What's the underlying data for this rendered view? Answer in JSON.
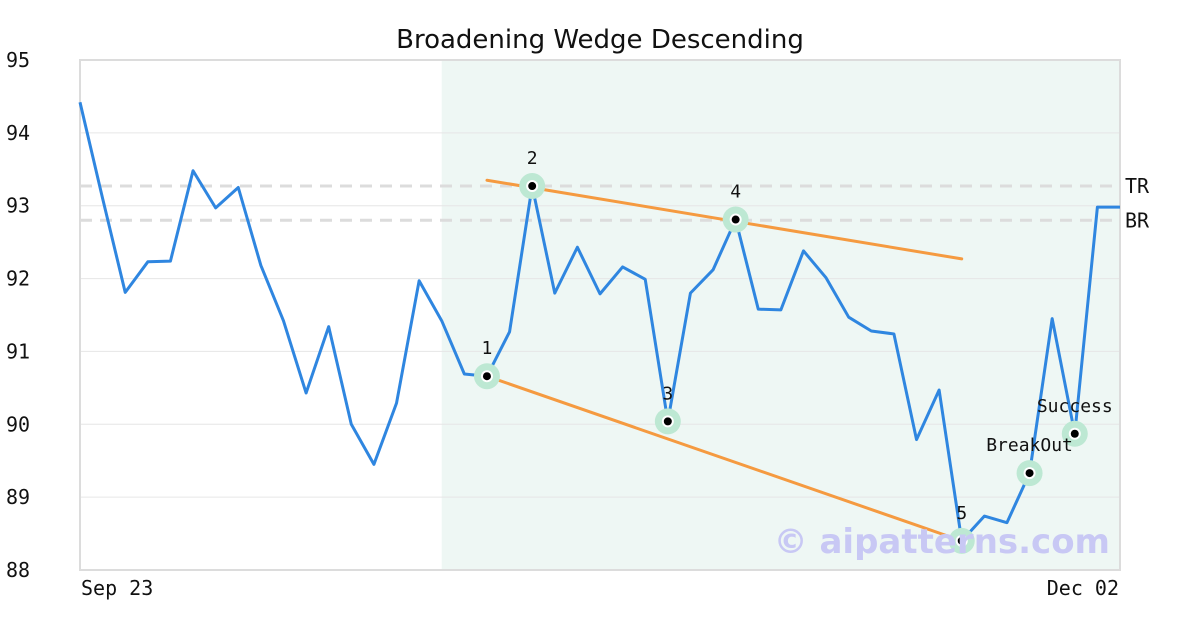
{
  "chart_data": {
    "type": "line",
    "title": "Broadening Wedge Descending",
    "xlabel": "",
    "ylabel": "",
    "ylim": [
      88,
      95
    ],
    "y_ticks": [
      "88",
      "89",
      "90",
      "91",
      "92",
      "93",
      "94",
      "95"
    ],
    "x_tick_labels": [
      "Sep 23",
      "Dec 02"
    ],
    "grid": "horizontal",
    "series": [
      {
        "color": "#2f86e0",
        "values": [
          94.42,
          93.1,
          91.81,
          92.23,
          92.24,
          93.48,
          92.97,
          93.25,
          92.18,
          91.42,
          90.43,
          91.34,
          90.0,
          89.45,
          90.29,
          91.97,
          91.42,
          90.69,
          90.66,
          91.27,
          93.27,
          91.8,
          92.43,
          91.79,
          92.16,
          91.99,
          90.04,
          91.8,
          92.12,
          92.81,
          91.58,
          91.57,
          92.38,
          92.01,
          91.47,
          91.28,
          91.24,
          89.79,
          90.47,
          88.4,
          88.74,
          88.65,
          89.33,
          91.45,
          89.87,
          92.98,
          92.98
        ]
      }
    ],
    "pattern_region": {
      "from_index": 16,
      "to_index": 46,
      "color": "#eef7f4"
    },
    "trend_lines": [
      {
        "name": "upper",
        "color": "#f59a40",
        "from": [
          18,
          93.35
        ],
        "to": [
          39,
          92.27
        ]
      },
      {
        "name": "lower",
        "color": "#f59a40",
        "from": [
          18,
          90.66
        ],
        "to": [
          39,
          88.4
        ]
      }
    ],
    "reference_lines": [
      {
        "label": "TR",
        "value": 93.27
      },
      {
        "label": "BR",
        "value": 92.8
      }
    ],
    "markers": [
      {
        "label": "1",
        "index": 18,
        "value": 90.66
      },
      {
        "label": "2",
        "index": 20,
        "value": 93.27
      },
      {
        "label": "3",
        "index": 26,
        "value": 90.04
      },
      {
        "label": "4",
        "index": 29,
        "value": 92.81
      },
      {
        "label": "5",
        "index": 39,
        "value": 88.4
      },
      {
        "label": "BreakOut",
        "index": 42,
        "value": 89.33
      },
      {
        "label": "Success",
        "index": 44,
        "value": 89.87
      }
    ],
    "watermark": "© aipatterns.com"
  }
}
